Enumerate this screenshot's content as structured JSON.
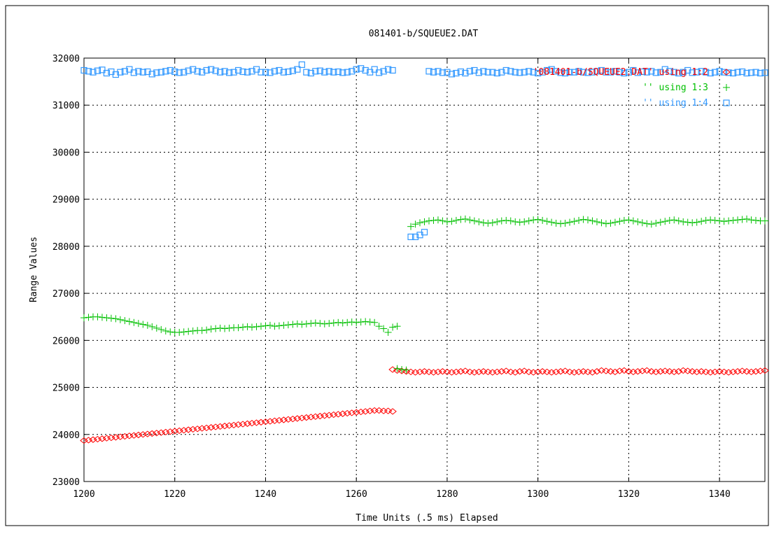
{
  "chart_data": {
    "type": "scatter",
    "title": "081401-b/SQUEUE2.DAT",
    "xlabel": "Time Units (.5 ms) Elapsed",
    "ylabel": "Range Values",
    "xlim": [
      1200,
      1350
    ],
    "ylim": [
      23000,
      32000
    ],
    "x_ticks": [
      1200,
      1220,
      1240,
      1260,
      1280,
      1300,
      1320,
      1340
    ],
    "y_ticks": [
      23000,
      24000,
      25000,
      26000,
      27000,
      28000,
      29000,
      30000,
      31000,
      32000
    ],
    "x_tick_labels": [
      "1200",
      "1220",
      "1240",
      "1260",
      "1280",
      "1300",
      "1320",
      "1340"
    ],
    "y_tick_labels": [
      "23000",
      "24000",
      "25000",
      "26000",
      "27000",
      "28000",
      "29000",
      "30000",
      "31000",
      "32000"
    ],
    "grid": true,
    "legend_position": "top-right",
    "series": [
      {
        "name": "'081401-b/SQUEUE2.DAT' using 1:2",
        "marker": "diamond",
        "color": "#ff0000",
        "segments": [
          {
            "x_start": 1200,
            "x_end": 1268,
            "step": 1,
            "values": [
              23870,
              23880,
              23890,
              23900,
              23910,
              23920,
              23930,
              23940,
              23950,
              23960,
              23970,
              23980,
              23990,
              24000,
              24010,
              24020,
              24030,
              24040,
              24050,
              24060,
              24070,
              24080,
              24090,
              24100,
              24110,
              24120,
              24130,
              24140,
              24150,
              24160,
              24170,
              24180,
              24190,
              24200,
              24210,
              24220,
              24230,
              24240,
              24250,
              24260,
              24270,
              24280,
              24290,
              24300,
              24310,
              24320,
              24330,
              24340,
              24350,
              24360,
              24370,
              24380,
              24390,
              24400,
              24410,
              24420,
              24430,
              24440,
              24450,
              24460,
              24470,
              24480,
              24490,
              24500,
              24510,
              24510,
              24500,
              24500,
              24490
            ]
          },
          {
            "x_start": 1268,
            "x_end": 1350,
            "step": 1,
            "values": [
              25380,
              25360,
              25350,
              25340,
              25330,
              25320,
              25330,
              25340,
              25330,
              25320,
              25330,
              25340,
              25330,
              25320,
              25330,
              25340,
              25350,
              25330,
              25320,
              25330,
              25340,
              25330,
              25320,
              25330,
              25340,
              25350,
              25330,
              25320,
              25340,
              25350,
              25330,
              25320,
              25330,
              25340,
              25330,
              25320,
              25330,
              25340,
              25350,
              25330,
              25320,
              25330,
              25340,
              25330,
              25320,
              25340,
              25360,
              25350,
              25340,
              25330,
              25350,
              25360,
              25340,
              25330,
              25340,
              25350,
              25360,
              25340,
              25330,
              25340,
              25350,
              25340,
              25330,
              25340,
              25360,
              25350,
              25340,
              25330,
              25340,
              25330,
              25320,
              25330,
              25340,
              25330,
              25320,
              25330,
              25340,
              25350,
              25340,
              25330,
              25340,
              25350,
              25360
            ]
          }
        ]
      },
      {
        "name": "'' using 1:3",
        "marker": "plus",
        "color": "#00c000",
        "segments": [
          {
            "x_start": 1200,
            "x_end": 1269,
            "step": 1,
            "values": [
              26480,
              26490,
              26500,
              26500,
              26490,
              26480,
              26470,
              26460,
              26440,
              26420,
              26400,
              26380,
              26360,
              26340,
              26320,
              26290,
              26260,
              26230,
              26200,
              26180,
              26170,
              26170,
              26180,
              26190,
              26200,
              26210,
              26210,
              26220,
              26240,
              26250,
              26260,
              26250,
              26260,
              26270,
              26270,
              26280,
              26290,
              26280,
              26290,
              26300,
              26310,
              26320,
              26300,
              26310,
              26320,
              26330,
              26340,
              26350,
              26340,
              26350,
              26360,
              26370,
              26360,
              26350,
              26360,
              26370,
              26380,
              26370,
              26380,
              26390,
              26380,
              26390,
              26400,
              26390,
              26380,
              26300,
              26250,
              26170,
              26280,
              26300
            ]
          },
          {
            "x_start": 1269,
            "x_end": 1350,
            "step": 1,
            "values": [
              25400,
              25380,
              25370,
              28420,
              28470,
              28500,
              28520,
              28540,
              28550,
              28560,
              28540,
              28520,
              28530,
              28550,
              28570,
              28580,
              28560,
              28540,
              28520,
              28500,
              28490,
              28500,
              28520,
              28540,
              28550,
              28540,
              28520,
              28510,
              28520,
              28540,
              28560,
              28570,
              28550,
              28530,
              28510,
              28490,
              28480,
              28490,
              28510,
              28530,
              28550,
              28570,
              28560,
              28540,
              28520,
              28500,
              28480,
              28490,
              28510,
              28530,
              28550,
              28560,
              28540,
              28520,
              28500,
              28480,
              28470,
              28490,
              28510,
              28530,
              28550,
              28560,
              28540,
              28520,
              28510,
              28500,
              28510,
              28530,
              28550,
              28560,
              28550,
              28540,
              28530,
              28540,
              28550,
              28560,
              28570,
              28580,
              28560,
              28550,
              28540,
              28540
            ]
          }
        ]
      },
      {
        "name": "'' using 1:4",
        "marker": "square",
        "color": "#3399ff",
        "segments": [
          {
            "x_start": 1200,
            "x_end": 1268,
            "step": 1,
            "values": [
              31740,
              31720,
              31700,
              31730,
              31750,
              31680,
              31710,
              31650,
              31700,
              31720,
              31760,
              31690,
              31720,
              31700,
              31710,
              31660,
              31690,
              31700,
              31720,
              31740,
              31710,
              31690,
              31700,
              31730,
              31760,
              31720,
              31700,
              31740,
              31760,
              31730,
              31700,
              31720,
              31690,
              31700,
              31740,
              31710,
              31700,
              31720,
              31760,
              31700,
              31700,
              31690,
              31720,
              31740,
              31700,
              31710,
              31730,
              31760,
              31860,
              31700,
              31680,
              31720,
              31730,
              31700,
              31720,
              31700,
              31710,
              31690,
              31700,
              31720,
              31760,
              31780,
              31740,
              31700,
              31760,
              31690,
              31720,
              31760,
              31740
            ]
          },
          {
            "x_start": 1272,
            "x_end": 1275,
            "step": 1,
            "values": [
              28200,
              28200,
              28240,
              28300
            ]
          },
          {
            "x_start": 1276,
            "x_end": 1350,
            "step": 1,
            "values": [
              31720,
              31700,
              31720,
              31690,
              31700,
              31660,
              31680,
              31710,
              31680,
              31720,
              31740,
              31690,
              31720,
              31700,
              31700,
              31680,
              31700,
              31740,
              31720,
              31700,
              31690,
              31700,
              31720,
              31700,
              31680,
              31700,
              31740,
              31760,
              31720,
              31690,
              31680,
              31700,
              31700,
              31720,
              31700,
              31690,
              31700,
              31720,
              31740,
              31700,
              31700,
              31720,
              31700,
              31680,
              31700,
              31740,
              31690,
              31710,
              31700,
              31720,
              31690,
              31700,
              31760,
              31720,
              31700,
              31680,
              31700,
              31740,
              31690,
              31700,
              31720,
              31700,
              31680,
              31700,
              31720,
              31700,
              31690,
              31680,
              31700,
              31710,
              31680,
              31690,
              31700,
              31680,
              31690
            ]
          }
        ]
      }
    ]
  }
}
